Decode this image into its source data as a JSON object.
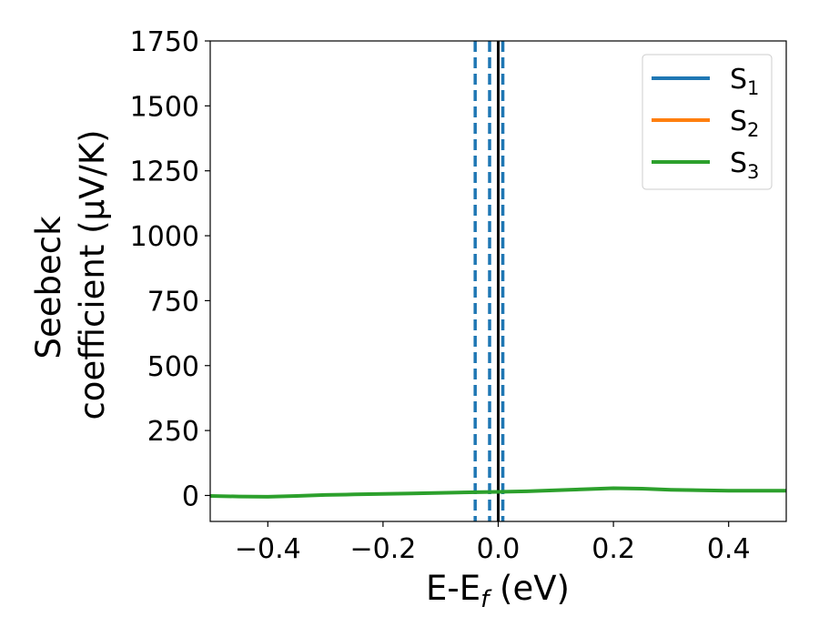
{
  "chart_data": {
    "type": "line",
    "title": "",
    "xlabel": "E-E",
    "xlabel_sub": "f",
    "xlabel_unit": " (eV)",
    "ylabel_line1": "Seebeck",
    "ylabel_line2": "coefficient  (μV/K)",
    "xlim": [
      -0.5,
      0.5
    ],
    "ylim": [
      -100,
      1750
    ],
    "xticks": [
      -0.4,
      -0.2,
      0.0,
      0.2,
      0.4
    ],
    "xtick_labels": [
      "−0.4",
      "−0.2",
      "0.0",
      "0.2",
      "0.4"
    ],
    "yticks": [
      0,
      250,
      500,
      750,
      1000,
      1250,
      1500,
      1750
    ],
    "ytick_labels": [
      "0",
      "250",
      "500",
      "750",
      "1000",
      "1250",
      "1500",
      "1750"
    ],
    "grid": false,
    "legend_position": "top-right",
    "series": [
      {
        "name": "S",
        "name_sub": "1",
        "color": "#1f77b4",
        "x": [],
        "y": []
      },
      {
        "name": "S",
        "name_sub": "2",
        "color": "#ff7f0e",
        "x": [],
        "y": []
      },
      {
        "name": "S",
        "name_sub": "3",
        "color": "#2ca02c",
        "x": [
          -0.5,
          -0.45,
          -0.4,
          -0.35,
          -0.3,
          -0.25,
          -0.2,
          -0.15,
          -0.1,
          -0.05,
          0.0,
          0.05,
          0.1,
          0.15,
          0.2,
          0.25,
          0.3,
          0.35,
          0.4,
          0.45,
          0.5
        ],
        "y": [
          -2,
          -4,
          -5,
          -2,
          2,
          4,
          6,
          8,
          10,
          12,
          14,
          16,
          20,
          24,
          28,
          26,
          22,
          20,
          18,
          18,
          18
        ]
      }
    ],
    "vlines": [
      {
        "x": -0.04,
        "color": "#1f77b4",
        "style": "dashed"
      },
      {
        "x": -0.015,
        "color": "#1f77b4",
        "style": "dashed"
      },
      {
        "x": 0.008,
        "color": "#1f77b4",
        "style": "dashed"
      },
      {
        "x": 0.0,
        "color": "#000000",
        "style": "solid"
      }
    ]
  }
}
